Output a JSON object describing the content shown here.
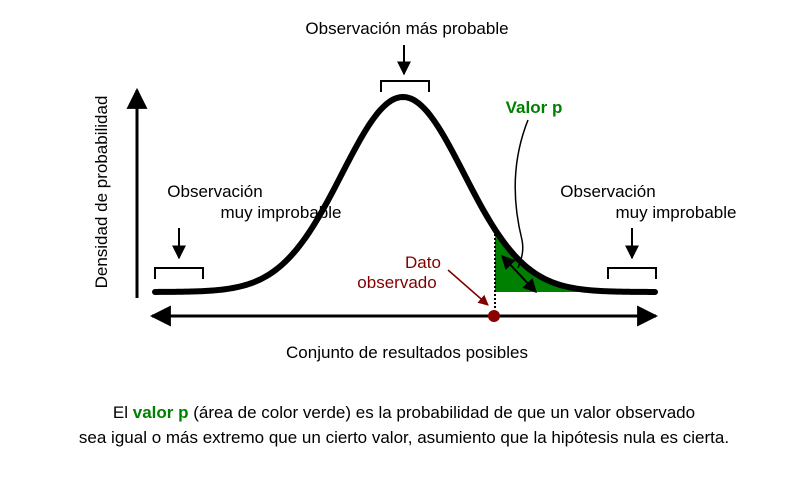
{
  "labels": {
    "most_probable": "Observación más probable",
    "p_value": "Valor p",
    "left_unlikely": [
      "Observación",
      "muy improbable"
    ],
    "right_unlikely": [
      "Observación",
      "muy improbable"
    ],
    "observed": [
      "Dato",
      "observado"
    ]
  },
  "axes": {
    "y_label": "Densidad de probabilidad",
    "x_label": "Conjunto de resultados posibles"
  },
  "caption": {
    "line1": [
      "El ",
      "valor p",
      " (área de color verde) es la probabilidad de que un valor observado"
    ],
    "line2": "sea igual o más extremo que un cierto valor, asumiento que la hipótesis nula es cierta."
  }
}
